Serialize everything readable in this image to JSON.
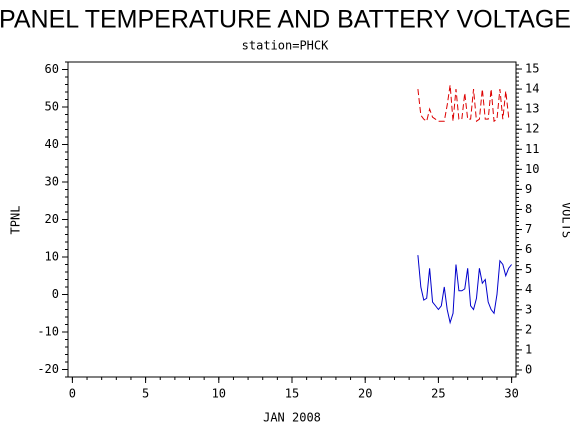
{
  "chart_data": {
    "type": "line",
    "title": "PANEL TEMPERATURE AND BATTERY VOLTAGE",
    "subtitle": "station=PHCK",
    "x_label": "JAN 2008",
    "y_label": "TPNL",
    "y2_label": "VOLTS",
    "x": [
      23.6,
      23.8,
      24.0,
      24.2,
      24.4,
      24.6,
      24.8,
      25.0,
      25.2,
      25.4,
      25.6,
      25.8,
      26.0,
      26.2,
      26.4,
      26.6,
      26.8,
      27.0,
      27.2,
      27.4,
      27.6,
      27.8,
      28.0,
      28.2,
      28.4,
      28.6,
      28.8,
      29.0,
      29.2,
      29.4,
      29.6,
      29.8,
      30.0
    ],
    "series": [
      {
        "name": "TPNL",
        "color": "#0000cc",
        "axis": "y",
        "dashed": false,
        "values": [
          10.5,
          2,
          -1.5,
          -1,
          7,
          -2,
          -3,
          -4,
          -3,
          2,
          -4,
          -7.5,
          -5,
          8,
          1,
          1,
          1.5,
          7,
          -3,
          -4,
          -1,
          7,
          3,
          4,
          -2,
          -4,
          -5,
          0,
          9,
          8,
          5,
          7,
          8
        ]
      },
      {
        "name": "VOLTS",
        "color": "#dd0000",
        "axis": "y2",
        "dashed": true,
        "values": [
          14,
          12.7,
          12.5,
          12.4,
          13.0,
          12.6,
          12.5,
          12.4,
          12.4,
          12.4,
          13.2,
          14.2,
          12.4,
          14,
          12.5,
          12.5,
          13.8,
          12.5,
          12.5,
          14,
          12.4,
          12.5,
          14,
          12.5,
          12.5,
          14,
          12.4,
          12.5,
          14,
          12.5,
          13.9,
          12.6,
          12.6
        ]
      }
    ],
    "xlim": [
      -0.3,
      30.3
    ],
    "xticks": [
      0,
      5,
      10,
      15,
      20,
      25,
      30
    ],
    "ylim": [
      -22,
      62
    ],
    "yticks": [
      -20,
      -10,
      0,
      10,
      20,
      30,
      40,
      50,
      60
    ],
    "y2lim": [
      -0.35,
      15.35
    ],
    "y2ticks": [
      0,
      1,
      2,
      3,
      4,
      5,
      6,
      7,
      8,
      9,
      10,
      11,
      12,
      13,
      14,
      15
    ]
  }
}
